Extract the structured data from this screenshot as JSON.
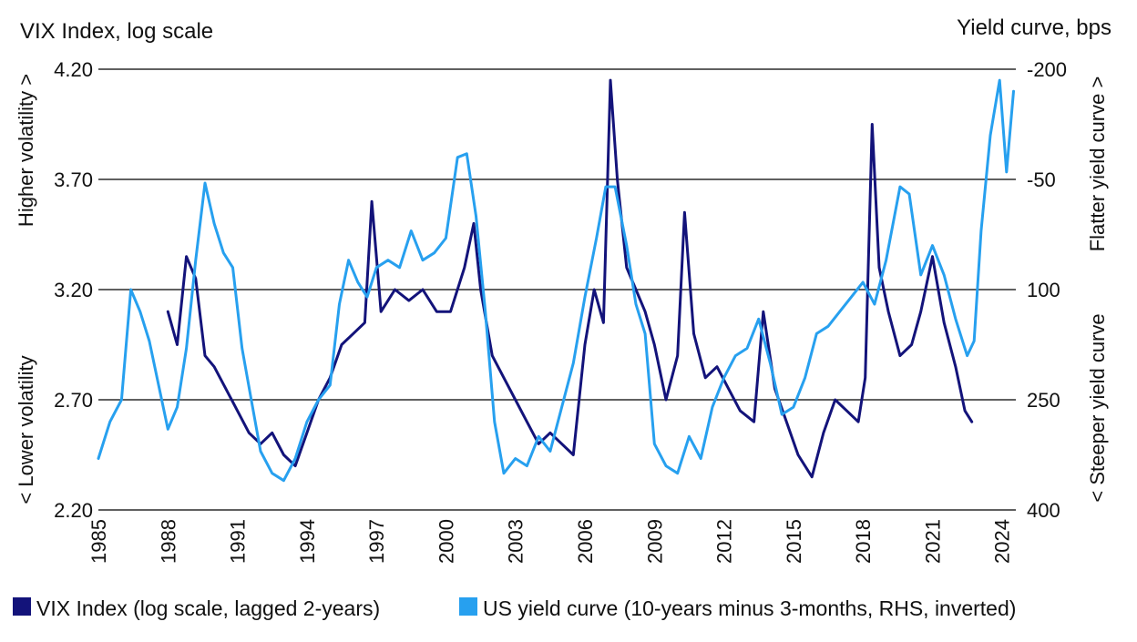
{
  "chart_data": {
    "type": "line",
    "left_axis_title": "VIX Index, log scale",
    "right_axis_title": "Yield curve, bps",
    "left_side_top_label": "Higher volatility >",
    "left_side_bottom_label": "< Lower volatility",
    "right_side_top_label": "Flatter yield curve >",
    "right_side_bottom_label": "< Steeper yield curve",
    "left_axis": {
      "scale": "linear",
      "range": [
        2.2,
        4.2
      ],
      "tick_values": [
        4.2,
        3.7,
        3.2,
        2.7,
        2.2
      ],
      "tick_labels": [
        "4.20",
        "3.70",
        "3.20",
        "2.70",
        "2.20"
      ]
    },
    "right_axis": {
      "inverted": true,
      "range": [
        -200,
        400
      ],
      "tick_values": [
        -200,
        -50,
        100,
        250,
        400
      ],
      "tick_labels": [
        "-200",
        "-50",
        "100",
        "250",
        "400"
      ]
    },
    "x_axis": {
      "range": [
        1985,
        2024.6
      ],
      "tick_values": [
        1985,
        1988,
        1991,
        1994,
        1997,
        2000,
        2003,
        2006,
        2009,
        2012,
        2015,
        2018,
        2021,
        2024
      ],
      "tick_labels": [
        "1985",
        "1988",
        "1991",
        "1994",
        "1997",
        "2000",
        "2003",
        "2006",
        "2009",
        "2012",
        "2015",
        "2018",
        "2021",
        "2024"
      ]
    },
    "grid": true,
    "legend_position": "bottom",
    "series": [
      {
        "name": "VIX Index (log scale, lagged 2-years)",
        "color": "#13137a",
        "axis": "left",
        "points": [
          [
            1988.0,
            3.1
          ],
          [
            1988.4,
            2.95
          ],
          [
            1988.8,
            3.35
          ],
          [
            1989.2,
            3.25
          ],
          [
            1989.6,
            2.9
          ],
          [
            1990.0,
            2.85
          ],
          [
            1990.5,
            2.75
          ],
          [
            1991.0,
            2.65
          ],
          [
            1991.5,
            2.55
          ],
          [
            1992.0,
            2.5
          ],
          [
            1992.5,
            2.55
          ],
          [
            1993.0,
            2.45
          ],
          [
            1993.5,
            2.4
          ],
          [
            1994.0,
            2.55
          ],
          [
            1994.5,
            2.7
          ],
          [
            1995.0,
            2.8
          ],
          [
            1995.5,
            2.95
          ],
          [
            1996.0,
            3.0
          ],
          [
            1996.5,
            3.05
          ],
          [
            1996.8,
            3.6
          ],
          [
            1997.2,
            3.1
          ],
          [
            1997.8,
            3.2
          ],
          [
            1998.4,
            3.15
          ],
          [
            1999.0,
            3.2
          ],
          [
            1999.6,
            3.1
          ],
          [
            2000.2,
            3.1
          ],
          [
            2000.8,
            3.3
          ],
          [
            2001.2,
            3.5
          ],
          [
            2001.5,
            3.2
          ],
          [
            2002.0,
            2.9
          ],
          [
            2002.5,
            2.8
          ],
          [
            2003.0,
            2.7
          ],
          [
            2003.5,
            2.6
          ],
          [
            2004.0,
            2.5
          ],
          [
            2004.5,
            2.55
          ],
          [
            2005.0,
            2.5
          ],
          [
            2005.5,
            2.45
          ],
          [
            2006.0,
            2.95
          ],
          [
            2006.4,
            3.2
          ],
          [
            2006.8,
            3.05
          ],
          [
            2007.1,
            4.15
          ],
          [
            2007.4,
            3.7
          ],
          [
            2007.8,
            3.3
          ],
          [
            2008.2,
            3.2
          ],
          [
            2008.6,
            3.1
          ],
          [
            2009.0,
            2.95
          ],
          [
            2009.5,
            2.7
          ],
          [
            2010.0,
            2.9
          ],
          [
            2010.3,
            3.55
          ],
          [
            2010.7,
            3.0
          ],
          [
            2011.2,
            2.8
          ],
          [
            2011.7,
            2.85
          ],
          [
            2012.2,
            2.75
          ],
          [
            2012.7,
            2.65
          ],
          [
            2013.3,
            2.6
          ],
          [
            2013.7,
            3.1
          ],
          [
            2014.2,
            2.75
          ],
          [
            2014.7,
            2.6
          ],
          [
            2015.2,
            2.45
          ],
          [
            2015.8,
            2.35
          ],
          [
            2016.3,
            2.55
          ],
          [
            2016.8,
            2.7
          ],
          [
            2017.3,
            2.65
          ],
          [
            2017.8,
            2.6
          ],
          [
            2018.1,
            2.8
          ],
          [
            2018.4,
            3.95
          ],
          [
            2018.7,
            3.3
          ],
          [
            2019.1,
            3.1
          ],
          [
            2019.6,
            2.9
          ],
          [
            2020.1,
            2.95
          ],
          [
            2020.5,
            3.1
          ],
          [
            2021.0,
            3.35
          ],
          [
            2021.5,
            3.05
          ],
          [
            2022.0,
            2.85
          ],
          [
            2022.4,
            2.65
          ],
          [
            2022.7,
            2.6
          ]
        ]
      },
      {
        "name": "US yield curve (10-years minus 3-months, RHS, inverted)",
        "color": "#27a0ef",
        "axis": "right",
        "points": [
          [
            1985.0,
            330
          ],
          [
            1985.5,
            280
          ],
          [
            1986.0,
            250
          ],
          [
            1986.4,
            100
          ],
          [
            1986.8,
            130
          ],
          [
            1987.2,
            170
          ],
          [
            1987.6,
            230
          ],
          [
            1988.0,
            290
          ],
          [
            1988.4,
            260
          ],
          [
            1988.8,
            180
          ],
          [
            1989.2,
            60
          ],
          [
            1989.6,
            -45
          ],
          [
            1990.0,
            10
          ],
          [
            1990.4,
            50
          ],
          [
            1990.8,
            70
          ],
          [
            1991.2,
            180
          ],
          [
            1991.6,
            250
          ],
          [
            1992.0,
            320
          ],
          [
            1992.5,
            350
          ],
          [
            1993.0,
            360
          ],
          [
            1993.5,
            330
          ],
          [
            1994.0,
            280
          ],
          [
            1994.5,
            250
          ],
          [
            1995.0,
            230
          ],
          [
            1995.4,
            120
          ],
          [
            1995.8,
            60
          ],
          [
            1996.2,
            90
          ],
          [
            1996.6,
            110
          ],
          [
            1997.0,
            70
          ],
          [
            1997.5,
            60
          ],
          [
            1998.0,
            70
          ],
          [
            1998.5,
            20
          ],
          [
            1999.0,
            60
          ],
          [
            1999.5,
            50
          ],
          [
            2000.0,
            30
          ],
          [
            2000.5,
            -80
          ],
          [
            2000.9,
            -85
          ],
          [
            2001.3,
            0
          ],
          [
            2001.7,
            130
          ],
          [
            2002.1,
            280
          ],
          [
            2002.5,
            350
          ],
          [
            2003.0,
            330
          ],
          [
            2003.5,
            340
          ],
          [
            2004.0,
            300
          ],
          [
            2004.5,
            320
          ],
          [
            2005.0,
            260
          ],
          [
            2005.5,
            200
          ],
          [
            2006.0,
            110
          ],
          [
            2006.5,
            30
          ],
          [
            2006.9,
            -40
          ],
          [
            2007.3,
            -40
          ],
          [
            2007.8,
            40
          ],
          [
            2008.2,
            120
          ],
          [
            2008.6,
            160
          ],
          [
            2009.0,
            310
          ],
          [
            2009.5,
            340
          ],
          [
            2010.0,
            350
          ],
          [
            2010.5,
            300
          ],
          [
            2011.0,
            330
          ],
          [
            2011.5,
            260
          ],
          [
            2012.0,
            220
          ],
          [
            2012.5,
            190
          ],
          [
            2013.0,
            180
          ],
          [
            2013.5,
            140
          ],
          [
            2014.0,
            200
          ],
          [
            2014.5,
            270
          ],
          [
            2015.0,
            260
          ],
          [
            2015.5,
            220
          ],
          [
            2016.0,
            160
          ],
          [
            2016.5,
            150
          ],
          [
            2017.0,
            130
          ],
          [
            2017.5,
            110
          ],
          [
            2018.0,
            90
          ],
          [
            2018.5,
            120
          ],
          [
            2019.0,
            60
          ],
          [
            2019.6,
            -40
          ],
          [
            2020.0,
            -30
          ],
          [
            2020.5,
            80
          ],
          [
            2021.0,
            40
          ],
          [
            2021.5,
            80
          ],
          [
            2022.0,
            140
          ],
          [
            2022.5,
            190
          ],
          [
            2022.8,
            170
          ],
          [
            2023.1,
            20
          ],
          [
            2023.5,
            -110
          ],
          [
            2023.9,
            -185
          ],
          [
            2024.2,
            -60
          ],
          [
            2024.5,
            -170
          ]
        ]
      }
    ]
  }
}
